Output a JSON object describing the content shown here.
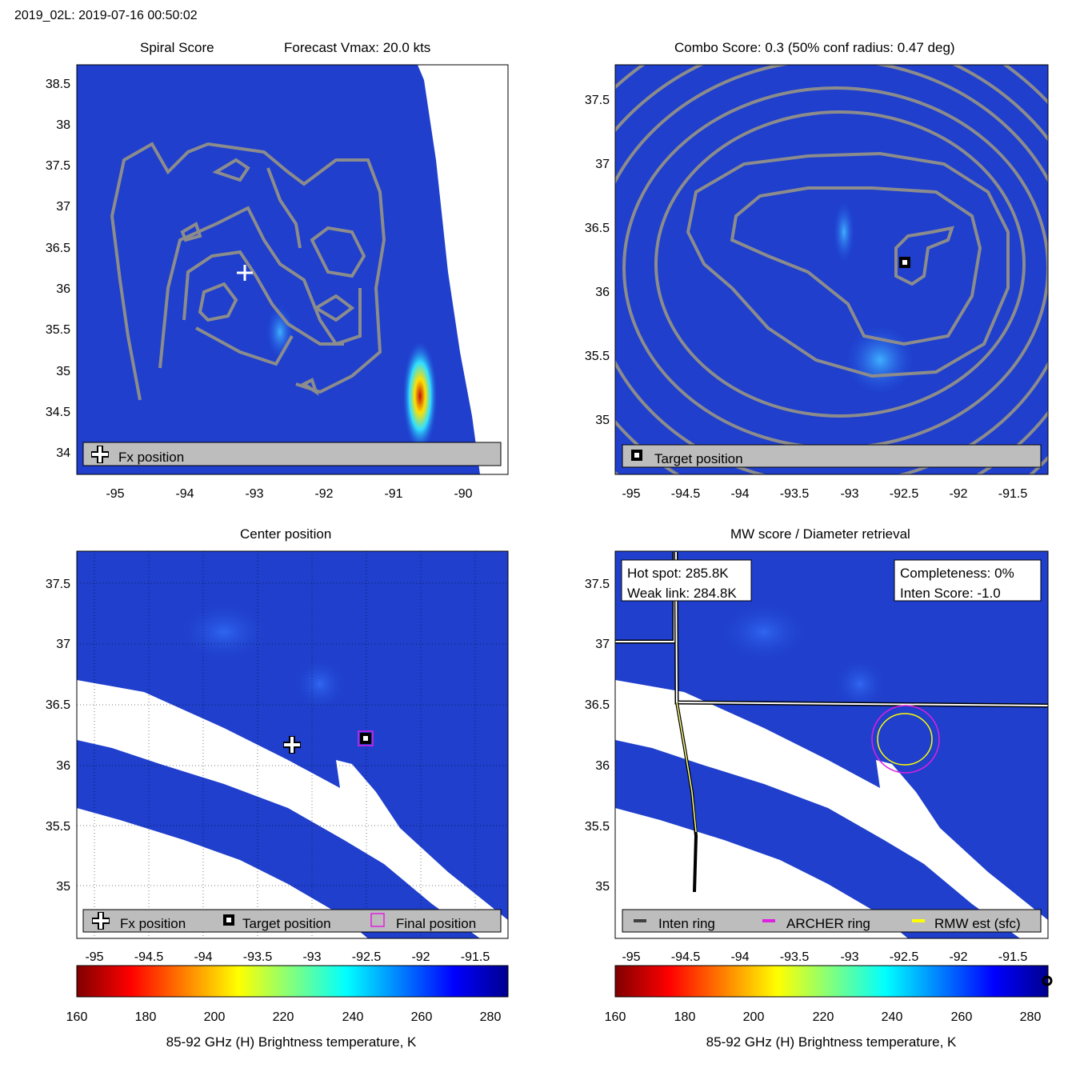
{
  "header": {
    "title": "2019_02L: 2019-07-16 00:50:02"
  },
  "panels": {
    "tl": {
      "title_left": "Spiral Score",
      "title_right": "Forecast Vmax: 20.0 kts",
      "legend": [
        "Fx position"
      ]
    },
    "tr": {
      "title": "Combo Score: 0.3  (50% conf radius: 0.47 deg)",
      "legend": [
        "Target position"
      ]
    },
    "bl": {
      "title": "Center position",
      "legend": [
        "Fx position",
        "Target position",
        "Final position"
      ]
    },
    "br": {
      "title": "MW score / Diameter retrieval",
      "info_left": [
        "Hot spot: 285.8K",
        "Weak link: 284.8K"
      ],
      "info_right": [
        "Completeness: 0%",
        "Inten Score: -1.0"
      ],
      "legend": [
        "Inten ring",
        "ARCHER ring",
        "RMW est (sfc)"
      ]
    }
  },
  "colorbar": {
    "label": "85-92 GHz (H) Brightness temperature, K",
    "ticks": [
      "160",
      "180",
      "200",
      "220",
      "240",
      "260",
      "280"
    ]
  },
  "colors": {
    "background_field": "#1f3fcc",
    "contour": "#8c8c8c",
    "legend_bg": "#bdbdbd",
    "archer_ring": "#e020e0",
    "rmw_ring": "#ffff00",
    "inten_ring": "#404040"
  },
  "chart_data": [
    {
      "type": "heatmap",
      "name": "Spiral Score",
      "xlim": [
        -95.6,
        -89.4
      ],
      "ylim": [
        33.7,
        38.7
      ],
      "xticks": [
        "-95",
        "-94",
        "-93",
        "-92",
        "-91",
        "-90"
      ],
      "yticks": [
        "34",
        "34.5",
        "35",
        "35.5",
        "36",
        "36.5",
        "37",
        "37.5",
        "38",
        "38.5"
      ],
      "fx_position": [
        -93.2,
        36.2
      ]
    },
    {
      "type": "heatmap",
      "name": "Combo Score",
      "xlim": [
        -95.15,
        -91.2
      ],
      "ylim": [
        34.55,
        37.8
      ],
      "xticks": [
        "-95",
        "-94.5",
        "-94",
        "-93.5",
        "-93",
        "-92.5",
        "-92",
        "-91.5"
      ],
      "yticks": [
        "35",
        "35.5",
        "36",
        "36.5",
        "37",
        "37.5"
      ],
      "target_position": [
        -92.5,
        36.22
      ]
    },
    {
      "type": "heatmap",
      "name": "Center position",
      "xlim": [
        -95.15,
        -91.2
      ],
      "ylim": [
        34.6,
        37.75
      ],
      "xticks": [
        "-95",
        "-94.5",
        "-94",
        "-93.5",
        "-93",
        "-92.5",
        "-92",
        "-91.5"
      ],
      "yticks": [
        "35",
        "35.5",
        "36",
        "36.5",
        "37",
        "37.5"
      ],
      "fx_position": [
        -93.17,
        36.17
      ],
      "target_position": [
        -92.5,
        36.22
      ],
      "final_position": [
        -92.5,
        36.22
      ]
    },
    {
      "type": "heatmap",
      "name": "MW score / Diameter retrieval",
      "xlim": [
        -95.15,
        -91.2
      ],
      "ylim": [
        34.6,
        37.75
      ],
      "xticks": [
        "-95",
        "-94.5",
        "-94",
        "-93.5",
        "-93",
        "-92.5",
        "-92",
        "-91.5"
      ],
      "yticks": [
        "35",
        "35.5",
        "36",
        "36.5",
        "37",
        "37.5"
      ],
      "archer_ring_center": [
        -92.5,
        36.22
      ]
    }
  ]
}
